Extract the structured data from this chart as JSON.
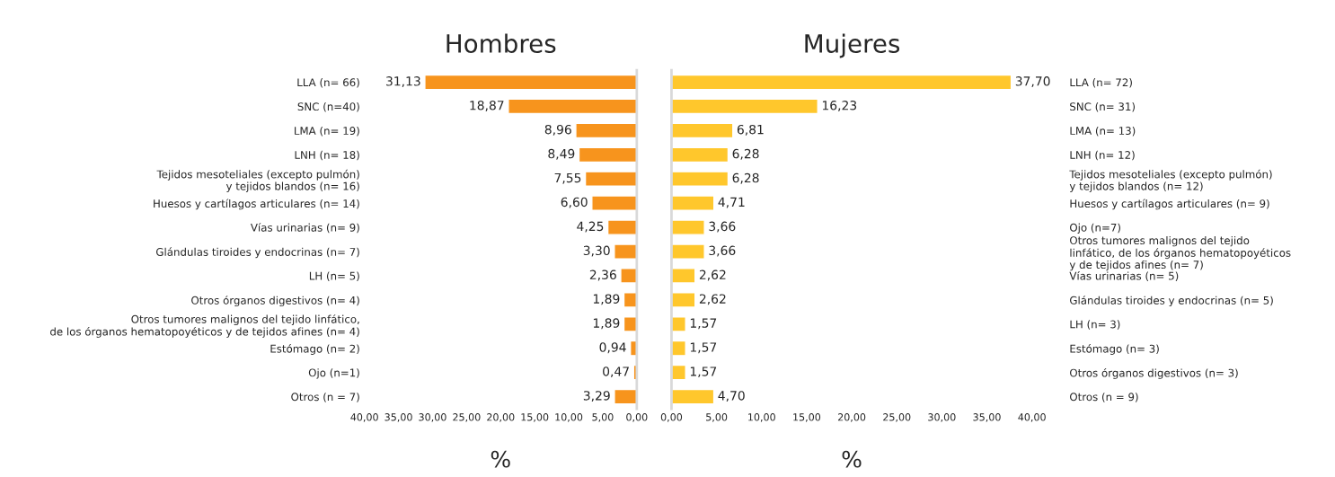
{
  "chart_data": [
    {
      "type": "bar",
      "orientation": "horizontal",
      "title": "Hombres",
      "xlabel": "%",
      "categories": [
        "LLA (n= 66)",
        "SNC (n=40)",
        "LMA (n= 19)",
        "LNH (n= 18)",
        "Tejidos mesoteliales (excepto pulmón)\ny tejidos blandos (n= 16)",
        "Huesos y cartílagos articulares (n= 14)",
        "Vías urinarias (n= 9)",
        "Glándulas tiroides y endocrinas (n= 7)",
        "LH (n= 5)",
        "Otros órganos digestivos (n= 4)",
        "Otros tumores malignos del tejido linfático,\nde los órganos hematopoyéticos y de tejidos afines (n= 4)",
        "Estómago (n= 2)",
        "Ojo (n=1)",
        "Otros (n = 7)"
      ],
      "values": [
        31.13,
        18.87,
        8.96,
        8.49,
        7.55,
        6.6,
        4.25,
        3.3,
        2.36,
        1.89,
        1.89,
        0.94,
        0.47,
        3.29
      ],
      "value_labels": [
        "31,13",
        "18,87",
        "8,96",
        "8,49",
        "7,55",
        "6,60",
        "4,25",
        "3,30",
        "2,36",
        "1,89",
        "1,89",
        "0,94",
        "0,47",
        "3,29"
      ],
      "color": "#f7941d",
      "xlim": [
        40,
        0
      ],
      "xticks": [
        {
          "value": 40,
          "label": "40,00"
        },
        {
          "value": 35,
          "label": "35,00"
        },
        {
          "value": 30,
          "label": "30,00"
        },
        {
          "value": 25,
          "label": "25,00"
        },
        {
          "value": 20,
          "label": "20,00"
        },
        {
          "value": 15,
          "label": "15,00"
        },
        {
          "value": 10,
          "label": "10,00"
        },
        {
          "value": 5,
          "label": "5,00"
        },
        {
          "value": 0,
          "label": "0,00"
        }
      ],
      "grid": false,
      "legend": false
    },
    {
      "type": "bar",
      "orientation": "horizontal",
      "title": "Mujeres",
      "xlabel": "%",
      "categories": [
        "LLA (n= 72)",
        "SNC (n= 31)",
        "LMA (n= 13)",
        "LNH (n= 12)",
        "Tejidos mesoteliales (excepto pulmón)\ny tejidos blandos (n= 12)",
        "Huesos y cartílagos articulares (n= 9)",
        "Ojo (n=7)",
        "Otros tumores malignos del tejido\nlinfático, de los órganos hematopoyéticos\ny de tejidos afines (n= 7)",
        "Vías urinarias (n= 5)",
        "Glándulas tiroides y endocrinas (n= 5)",
        "LH (n= 3)",
        "Estómago (n= 3)",
        "Otros órganos digestivos (n= 3)",
        "Otros (n = 9)"
      ],
      "values": [
        37.7,
        16.23,
        6.81,
        6.28,
        6.28,
        4.71,
        3.66,
        3.66,
        2.62,
        2.62,
        1.57,
        1.57,
        1.57,
        4.7
      ],
      "value_labels": [
        "37,70",
        "16,23",
        "6,81",
        "6,28",
        "6,28",
        "4,71",
        "3,66",
        "3,66",
        "2,62",
        "2,62",
        "1,57",
        "1,57",
        "1,57",
        "4,70"
      ],
      "color": "#ffc72c",
      "xlim": [
        0,
        40
      ],
      "xticks": [
        {
          "value": 0,
          "label": "0,00"
        },
        {
          "value": 5,
          "label": "5,00"
        },
        {
          "value": 10,
          "label": "10,00"
        },
        {
          "value": 15,
          "label": "15,00"
        },
        {
          "value": 20,
          "label": "20,00"
        },
        {
          "value": 25,
          "label": "25,00"
        },
        {
          "value": 30,
          "label": "30,00"
        },
        {
          "value": 35,
          "label": "35,00"
        },
        {
          "value": 40,
          "label": "40,00"
        }
      ],
      "grid": false,
      "legend": false
    }
  ]
}
